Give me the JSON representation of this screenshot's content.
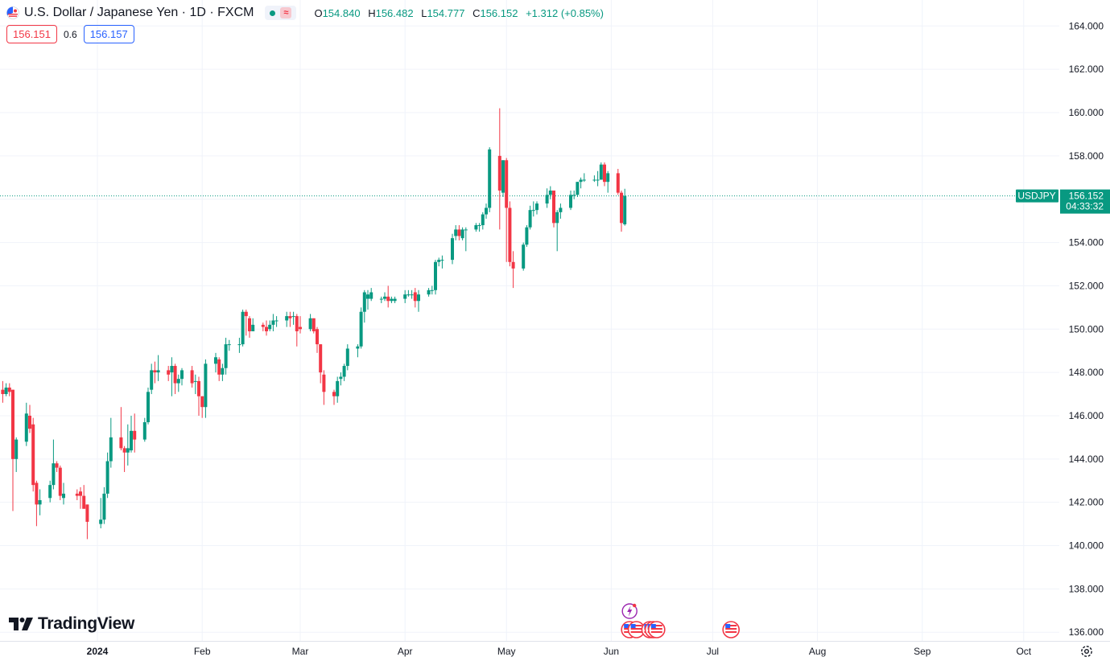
{
  "header": {
    "symbol_title": "U.S. Dollar / Japanese Yen · 1D · FXCM",
    "flag_icon": "us-jp-flag-icon",
    "open_label": "O",
    "open_value": "154.840",
    "high_label": "H",
    "high_value": "156.482",
    "low_label": "L",
    "low_value": "154.777",
    "close_label": "C",
    "close_value": "156.152",
    "change_value": "+1.312 (+0.85%)"
  },
  "quotes": {
    "sell": "156.151",
    "spread": "0.6",
    "buy": "156.157"
  },
  "brand": {
    "name": "TradingView"
  },
  "price_label": {
    "symbol": "USDJPY",
    "price": "156.152",
    "countdown": "04:33:32"
  },
  "colors": {
    "up": "#089981",
    "down": "#f23645",
    "grid": "#f0f3fa",
    "text": "#131722",
    "accent_event": "#9c27b0"
  },
  "chart_data": {
    "type": "candlestick",
    "title": "U.S. Dollar / Japanese Yen · 1D · FXCM",
    "ylim": [
      135.6,
      165.2
    ],
    "y_ticks": [
      136,
      138,
      140,
      142,
      144,
      146,
      148,
      150,
      152,
      154,
      156,
      158,
      160,
      162,
      164
    ],
    "x_range": [
      "2023-12-01",
      "2024-10-15"
    ],
    "x_ticks": [
      {
        "date": "2024-01-01",
        "label": "2024",
        "bold": true
      },
      {
        "date": "2024-02-01",
        "label": "Feb"
      },
      {
        "date": "2024-03-01",
        "label": "Mar"
      },
      {
        "date": "2024-04-01",
        "label": "Apr"
      },
      {
        "date": "2024-05-01",
        "label": "May"
      },
      {
        "date": "2024-06-01",
        "label": "Jun"
      },
      {
        "date": "2024-07-01",
        "label": "Jul"
      },
      {
        "date": "2024-08-01",
        "label": "Aug"
      },
      {
        "date": "2024-09-01",
        "label": "Sep"
      },
      {
        "date": "2024-10-01",
        "label": "Oct"
      }
    ],
    "last_price": 156.152,
    "candles": [
      {
        "d": "2023-12-01",
        "o": 146.8,
        "h": 147.5,
        "l": 146.0,
        "c": 147.2
      },
      {
        "d": "2023-12-04",
        "o": 147.2,
        "h": 147.6,
        "l": 146.6,
        "c": 147.0
      },
      {
        "d": "2023-12-05",
        "o": 147.0,
        "h": 147.5,
        "l": 146.9,
        "c": 147.3
      },
      {
        "d": "2023-12-06",
        "o": 147.3,
        "h": 147.5,
        "l": 146.9,
        "c": 147.1
      },
      {
        "d": "2023-12-07",
        "o": 147.2,
        "h": 147.2,
        "l": 141.6,
        "c": 144.0
      },
      {
        "d": "2023-12-08",
        "o": 144.0,
        "h": 145.0,
        "l": 143.4,
        "c": 144.9
      },
      {
        "d": "2023-12-11",
        "o": 144.8,
        "h": 146.6,
        "l": 144.6,
        "c": 146.1
      },
      {
        "d": "2023-12-12",
        "o": 146.0,
        "h": 146.5,
        "l": 145.2,
        "c": 145.4
      },
      {
        "d": "2023-12-13",
        "o": 145.6,
        "h": 145.9,
        "l": 142.5,
        "c": 142.8
      },
      {
        "d": "2023-12-14",
        "o": 142.9,
        "h": 143.0,
        "l": 140.9,
        "c": 141.9
      },
      {
        "d": "2023-12-15",
        "o": 141.9,
        "h": 142.6,
        "l": 141.4,
        "c": 142.1
      },
      {
        "d": "2023-12-18",
        "o": 142.2,
        "h": 143.0,
        "l": 142.0,
        "c": 142.8
      },
      {
        "d": "2023-12-19",
        "o": 142.8,
        "h": 144.9,
        "l": 142.6,
        "c": 143.8
      },
      {
        "d": "2023-12-20",
        "o": 143.8,
        "h": 143.9,
        "l": 143.4,
        "c": 143.6
      },
      {
        "d": "2023-12-21",
        "o": 143.6,
        "h": 143.7,
        "l": 142.1,
        "c": 142.3
      },
      {
        "d": "2023-12-22",
        "o": 142.2,
        "h": 142.9,
        "l": 141.9,
        "c": 142.4
      },
      {
        "d": "2023-12-26",
        "o": 142.4,
        "h": 142.6,
        "l": 142.1,
        "c": 142.3
      },
      {
        "d": "2023-12-27",
        "o": 142.5,
        "h": 142.7,
        "l": 141.7,
        "c": 142.3
      },
      {
        "d": "2023-12-28",
        "o": 142.3,
        "h": 142.8,
        "l": 141.9,
        "c": 141.7
      },
      {
        "d": "2023-12-29",
        "o": 141.9,
        "h": 141.9,
        "l": 140.3,
        "c": 141.1
      },
      {
        "d": "2024-01-02",
        "o": 141.0,
        "h": 142.2,
        "l": 140.8,
        "c": 141.2
      },
      {
        "d": "2024-01-03",
        "o": 141.2,
        "h": 142.7,
        "l": 141.0,
        "c": 142.4
      },
      {
        "d": "2024-01-04",
        "o": 142.4,
        "h": 144.3,
        "l": 142.2,
        "c": 143.9
      },
      {
        "d": "2024-01-05",
        "o": 143.9,
        "h": 145.9,
        "l": 143.6,
        "c": 145.0
      },
      {
        "d": "2024-01-08",
        "o": 145.0,
        "h": 146.4,
        "l": 144.4,
        "c": 144.5
      },
      {
        "d": "2024-01-09",
        "o": 144.5,
        "h": 144.6,
        "l": 143.4,
        "c": 144.3
      },
      {
        "d": "2024-01-10",
        "o": 144.3,
        "h": 145.6,
        "l": 143.7,
        "c": 144.5
      },
      {
        "d": "2024-01-11",
        "o": 144.4,
        "h": 146.0,
        "l": 144.3,
        "c": 145.3
      },
      {
        "d": "2024-01-12",
        "o": 145.3,
        "h": 146.1,
        "l": 144.3,
        "c": 144.9
      },
      {
        "d": "2024-01-15",
        "o": 144.9,
        "h": 145.9,
        "l": 144.8,
        "c": 145.7
      },
      {
        "d": "2024-01-16",
        "o": 145.7,
        "h": 147.3,
        "l": 145.6,
        "c": 147.1
      },
      {
        "d": "2024-01-17",
        "o": 147.2,
        "h": 148.4,
        "l": 147.0,
        "c": 148.1
      },
      {
        "d": "2024-01-18",
        "o": 148.1,
        "h": 148.5,
        "l": 147.5,
        "c": 148.0
      },
      {
        "d": "2024-01-19",
        "o": 148.0,
        "h": 148.8,
        "l": 147.6,
        "c": 148.1
      },
      {
        "d": "2024-01-22",
        "o": 148.1,
        "h": 148.3,
        "l": 147.6,
        "c": 147.9
      },
      {
        "d": "2024-01-23",
        "o": 148.0,
        "h": 148.7,
        "l": 146.9,
        "c": 148.3
      },
      {
        "d": "2024-01-24",
        "o": 148.3,
        "h": 148.4,
        "l": 147.0,
        "c": 147.5
      },
      {
        "d": "2024-01-25",
        "o": 147.5,
        "h": 147.9,
        "l": 147.1,
        "c": 147.7
      },
      {
        "d": "2024-01-26",
        "o": 147.7,
        "h": 148.2,
        "l": 147.4,
        "c": 148.1
      },
      {
        "d": "2024-01-29",
        "o": 148.1,
        "h": 148.3,
        "l": 147.3,
        "c": 147.5
      },
      {
        "d": "2024-01-30",
        "o": 147.6,
        "h": 147.9,
        "l": 147.0,
        "c": 147.6
      },
      {
        "d": "2024-01-31",
        "o": 147.6,
        "h": 147.8,
        "l": 146.0,
        "c": 146.9
      },
      {
        "d": "2024-02-01",
        "o": 146.9,
        "h": 146.9,
        "l": 145.9,
        "c": 146.4
      },
      {
        "d": "2024-02-02",
        "o": 146.4,
        "h": 148.6,
        "l": 145.9,
        "c": 148.4
      },
      {
        "d": "2024-02-05",
        "o": 148.4,
        "h": 148.9,
        "l": 148.0,
        "c": 148.7
      },
      {
        "d": "2024-02-06",
        "o": 148.6,
        "h": 148.7,
        "l": 147.6,
        "c": 147.9
      },
      {
        "d": "2024-02-07",
        "o": 147.9,
        "h": 148.4,
        "l": 147.6,
        "c": 148.2
      },
      {
        "d": "2024-02-08",
        "o": 148.2,
        "h": 149.6,
        "l": 147.9,
        "c": 149.3
      },
      {
        "d": "2024-02-09",
        "o": 149.3,
        "h": 149.5,
        "l": 149.0,
        "c": 149.3
      },
      {
        "d": "2024-02-12",
        "o": 149.3,
        "h": 149.6,
        "l": 148.9,
        "c": 149.3
      },
      {
        "d": "2024-02-13",
        "o": 149.3,
        "h": 150.9,
        "l": 149.2,
        "c": 150.8
      },
      {
        "d": "2024-02-14",
        "o": 150.8,
        "h": 150.9,
        "l": 149.7,
        "c": 150.6
      },
      {
        "d": "2024-02-15",
        "o": 150.5,
        "h": 150.6,
        "l": 149.6,
        "c": 149.9
      },
      {
        "d": "2024-02-16",
        "o": 149.9,
        "h": 150.5,
        "l": 149.9,
        "c": 150.2
      },
      {
        "d": "2024-02-19",
        "o": 150.2,
        "h": 150.3,
        "l": 149.9,
        "c": 150.1
      },
      {
        "d": "2024-02-20",
        "o": 150.1,
        "h": 150.4,
        "l": 149.7,
        "c": 149.9
      },
      {
        "d": "2024-02-21",
        "o": 150.0,
        "h": 150.4,
        "l": 149.9,
        "c": 150.2
      },
      {
        "d": "2024-02-22",
        "o": 150.2,
        "h": 150.7,
        "l": 149.9,
        "c": 150.4
      },
      {
        "d": "2024-02-23",
        "o": 150.4,
        "h": 150.6,
        "l": 150.1,
        "c": 150.4
      },
      {
        "d": "2024-02-26",
        "o": 150.4,
        "h": 150.8,
        "l": 150.1,
        "c": 150.6
      },
      {
        "d": "2024-02-27",
        "o": 150.6,
        "h": 150.8,
        "l": 150.1,
        "c": 150.5
      },
      {
        "d": "2024-02-28",
        "o": 150.6,
        "h": 150.8,
        "l": 150.2,
        "c": 150.6
      },
      {
        "d": "2024-02-29",
        "o": 150.6,
        "h": 150.7,
        "l": 149.2,
        "c": 149.9
      },
      {
        "d": "2024-03-01",
        "o": 150.1,
        "h": 150.6,
        "l": 149.8,
        "c": 150.0
      },
      {
        "d": "2024-03-04",
        "o": 150.0,
        "h": 150.7,
        "l": 149.9,
        "c": 150.5
      },
      {
        "d": "2024-03-05",
        "o": 150.5,
        "h": 150.5,
        "l": 149.8,
        "c": 149.9
      },
      {
        "d": "2024-03-06",
        "o": 150.0,
        "h": 150.1,
        "l": 148.9,
        "c": 149.3
      },
      {
        "d": "2024-03-07",
        "o": 149.3,
        "h": 149.3,
        "l": 147.5,
        "c": 148.0
      },
      {
        "d": "2024-03-08",
        "o": 147.9,
        "h": 148.1,
        "l": 146.5,
        "c": 147.1
      },
      {
        "d": "2024-03-11",
        "o": 147.1,
        "h": 147.2,
        "l": 146.5,
        "c": 146.9
      },
      {
        "d": "2024-03-12",
        "o": 146.9,
        "h": 147.8,
        "l": 146.6,
        "c": 147.6
      },
      {
        "d": "2024-03-13",
        "o": 147.7,
        "h": 148.0,
        "l": 147.4,
        "c": 147.8
      },
      {
        "d": "2024-03-14",
        "o": 147.8,
        "h": 148.4,
        "l": 147.6,
        "c": 148.3
      },
      {
        "d": "2024-03-15",
        "o": 148.3,
        "h": 149.3,
        "l": 148.1,
        "c": 149.1
      },
      {
        "d": "2024-03-18",
        "o": 149.1,
        "h": 149.3,
        "l": 148.7,
        "c": 149.2
      },
      {
        "d": "2024-03-19",
        "o": 149.2,
        "h": 151.0,
        "l": 149.1,
        "c": 150.8
      },
      {
        "d": "2024-03-20",
        "o": 150.8,
        "h": 151.8,
        "l": 150.3,
        "c": 151.7
      },
      {
        "d": "2024-03-21",
        "o": 151.4,
        "h": 151.8,
        "l": 150.9,
        "c": 151.6
      },
      {
        "d": "2024-03-22",
        "o": 151.4,
        "h": 151.9,
        "l": 151.3,
        "c": 151.7
      },
      {
        "d": "2024-03-25",
        "o": 151.4,
        "h": 151.5,
        "l": 151.2,
        "c": 151.4
      },
      {
        "d": "2024-03-26",
        "o": 151.4,
        "h": 151.7,
        "l": 151.3,
        "c": 151.5
      },
      {
        "d": "2024-03-27",
        "o": 151.5,
        "h": 152.0,
        "l": 151.0,
        "c": 151.3
      },
      {
        "d": "2024-03-28",
        "o": 151.3,
        "h": 151.5,
        "l": 151.2,
        "c": 151.4
      },
      {
        "d": "2024-03-29",
        "o": 151.3,
        "h": 151.5,
        "l": 151.2,
        "c": 151.4
      },
      {
        "d": "2024-04-01",
        "o": 151.4,
        "h": 151.8,
        "l": 151.2,
        "c": 151.6
      },
      {
        "d": "2024-04-02",
        "o": 151.6,
        "h": 151.8,
        "l": 151.5,
        "c": 151.6
      },
      {
        "d": "2024-04-03",
        "o": 151.6,
        "h": 151.8,
        "l": 151.4,
        "c": 151.6
      },
      {
        "d": "2024-04-04",
        "o": 151.7,
        "h": 151.9,
        "l": 151.0,
        "c": 151.3
      },
      {
        "d": "2024-04-05",
        "o": 151.3,
        "h": 151.8,
        "l": 150.8,
        "c": 151.6
      },
      {
        "d": "2024-04-08",
        "o": 151.6,
        "h": 151.9,
        "l": 151.5,
        "c": 151.8
      },
      {
        "d": "2024-04-09",
        "o": 151.8,
        "h": 152.0,
        "l": 151.6,
        "c": 151.8
      },
      {
        "d": "2024-04-10",
        "o": 151.8,
        "h": 153.2,
        "l": 151.6,
        "c": 153.1
      },
      {
        "d": "2024-04-11",
        "o": 153.1,
        "h": 153.3,
        "l": 152.9,
        "c": 153.2
      },
      {
        "d": "2024-04-12",
        "o": 153.2,
        "h": 153.4,
        "l": 152.8,
        "c": 153.2
      },
      {
        "d": "2024-04-15",
        "o": 153.2,
        "h": 154.4,
        "l": 153.0,
        "c": 154.2
      },
      {
        "d": "2024-04-16",
        "o": 154.3,
        "h": 154.8,
        "l": 154.1,
        "c": 154.6
      },
      {
        "d": "2024-04-17",
        "o": 154.6,
        "h": 154.8,
        "l": 154.1,
        "c": 154.3
      },
      {
        "d": "2024-04-18",
        "o": 154.2,
        "h": 154.7,
        "l": 154.1,
        "c": 154.6
      },
      {
        "d": "2024-04-19",
        "o": 154.6,
        "h": 154.7,
        "l": 153.6,
        "c": 154.6
      },
      {
        "d": "2024-04-22",
        "o": 154.6,
        "h": 154.9,
        "l": 154.5,
        "c": 154.8
      },
      {
        "d": "2024-04-23",
        "o": 154.8,
        "h": 154.9,
        "l": 154.5,
        "c": 154.8
      },
      {
        "d": "2024-04-24",
        "o": 154.8,
        "h": 155.4,
        "l": 154.6,
        "c": 155.3
      },
      {
        "d": "2024-04-25",
        "o": 155.3,
        "h": 155.8,
        "l": 155.1,
        "c": 155.6
      },
      {
        "d": "2024-04-26",
        "o": 155.6,
        "h": 158.4,
        "l": 155.4,
        "c": 158.3
      },
      {
        "d": "2024-04-29",
        "o": 158.0,
        "h": 160.2,
        "l": 154.6,
        "c": 156.4
      },
      {
        "d": "2024-04-30",
        "o": 156.3,
        "h": 157.8,
        "l": 156.1,
        "c": 157.8
      },
      {
        "d": "2024-05-01",
        "o": 157.8,
        "h": 157.9,
        "l": 153.1,
        "c": 155.6
      },
      {
        "d": "2024-05-02",
        "o": 155.6,
        "h": 155.9,
        "l": 152.9,
        "c": 153.1
      },
      {
        "d": "2024-05-03",
        "o": 153.1,
        "h": 153.6,
        "l": 151.9,
        "c": 152.8
      },
      {
        "d": "2024-05-06",
        "o": 152.8,
        "h": 154.0,
        "l": 152.7,
        "c": 153.9
      },
      {
        "d": "2024-05-07",
        "o": 153.9,
        "h": 154.8,
        "l": 153.8,
        "c": 154.7
      },
      {
        "d": "2024-05-08",
        "o": 154.7,
        "h": 155.7,
        "l": 154.6,
        "c": 155.5
      },
      {
        "d": "2024-05-09",
        "o": 155.5,
        "h": 155.9,
        "l": 155.2,
        "c": 155.5
      },
      {
        "d": "2024-05-10",
        "o": 155.5,
        "h": 155.9,
        "l": 155.3,
        "c": 155.8
      },
      {
        "d": "2024-05-13",
        "o": 155.8,
        "h": 156.5,
        "l": 155.6,
        "c": 156.2
      },
      {
        "d": "2024-05-14",
        "o": 156.2,
        "h": 156.6,
        "l": 156.0,
        "c": 156.4
      },
      {
        "d": "2024-05-15",
        "o": 156.4,
        "h": 156.4,
        "l": 154.7,
        "c": 154.9
      },
      {
        "d": "2024-05-16",
        "o": 154.9,
        "h": 155.5,
        "l": 153.6,
        "c": 155.4
      },
      {
        "d": "2024-05-17",
        "o": 155.4,
        "h": 155.8,
        "l": 155.1,
        "c": 155.6
      },
      {
        "d": "2024-05-20",
        "o": 155.6,
        "h": 156.4,
        "l": 155.5,
        "c": 156.2
      },
      {
        "d": "2024-05-21",
        "o": 156.2,
        "h": 156.4,
        "l": 156.0,
        "c": 156.2
      },
      {
        "d": "2024-05-22",
        "o": 156.2,
        "h": 156.8,
        "l": 156.1,
        "c": 156.8
      },
      {
        "d": "2024-05-23",
        "o": 156.8,
        "h": 157.0,
        "l": 156.5,
        "c": 156.9
      },
      {
        "d": "2024-05-24",
        "o": 156.9,
        "h": 157.2,
        "l": 156.8,
        "c": 156.9
      },
      {
        "d": "2024-05-27",
        "o": 156.9,
        "h": 157.1,
        "l": 156.8,
        "c": 156.9
      },
      {
        "d": "2024-05-28",
        "o": 156.9,
        "h": 157.3,
        "l": 156.6,
        "c": 156.9
      },
      {
        "d": "2024-05-29",
        "o": 156.9,
        "h": 157.7,
        "l": 156.9,
        "c": 157.6
      },
      {
        "d": "2024-05-30",
        "o": 157.6,
        "h": 157.7,
        "l": 156.6,
        "c": 156.8
      },
      {
        "d": "2024-05-31",
        "o": 156.8,
        "h": 157.3,
        "l": 156.3,
        "c": 157.2
      },
      {
        "d": "2024-06-03",
        "o": 157.2,
        "h": 157.4,
        "l": 156.2,
        "c": 156.3
      },
      {
        "d": "2024-06-04",
        "o": 156.3,
        "h": 156.4,
        "l": 154.5,
        "c": 154.9
      },
      {
        "d": "2024-06-05",
        "o": 154.84,
        "h": 156.482,
        "l": 154.777,
        "c": 156.152
      }
    ],
    "events": [
      {
        "type": "earnings-bolt",
        "date": "2024-06-05"
      },
      {
        "type": "us-economic-event",
        "date": "2024-06-05"
      },
      {
        "type": "us-economic-event",
        "date": "2024-06-07"
      },
      {
        "type": "us-economic-event",
        "date": "2024-06-11"
      },
      {
        "type": "us-economic-event",
        "date": "2024-06-12"
      },
      {
        "type": "us-economic-event",
        "date": "2024-06-13"
      },
      {
        "type": "us-economic-event",
        "date": "2024-07-05"
      }
    ]
  }
}
